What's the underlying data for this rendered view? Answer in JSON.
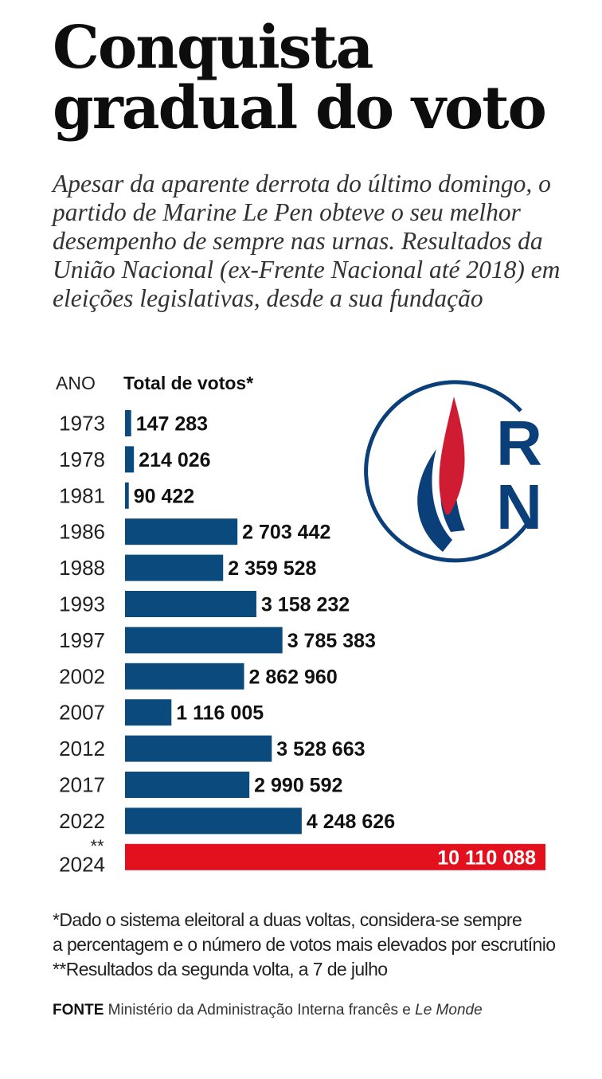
{
  "header": {
    "title_line1": "Conquista",
    "title_line2": "gradual do voto",
    "subtitle": "Apesar da aparente derrota do último domingo, o partido de Marine Le Pen obteve o seu melhor desempenho de sempre nas urnas. Resultados da União Nacional (ex-Frente Nacional até 2018) em eleições legislativas, desde a sua fundação"
  },
  "columns": {
    "year": "ANO",
    "total": "Total de votos*"
  },
  "logo": {
    "text_r": "R",
    "text_n": "N",
    "icon": "flame-logo-icon",
    "colors": {
      "blue": "#0b3f7a",
      "red": "#d01c33"
    }
  },
  "chart_data": {
    "type": "bar",
    "orientation": "horizontal",
    "categories": [
      "1973",
      "1978",
      "1981",
      "1986",
      "1988",
      "1993",
      "1997",
      "2002",
      "2007",
      "2012",
      "2017",
      "2022",
      "2024"
    ],
    "category_marks": [
      "",
      "",
      "",
      "",
      "",
      "",
      "",
      "",
      "",
      "",
      "",
      "",
      "**"
    ],
    "values": [
      147283,
      214026,
      90422,
      2703442,
      2359528,
      3158232,
      3785383,
      2862960,
      1116005,
      3528663,
      2990592,
      4248626,
      10110088
    ],
    "labels": [
      "147 283",
      "214 026",
      "90 422",
      "2 703 442",
      "2 359 528",
      "3 158 232",
      "3 785 383",
      "2 862 960",
      "1 116 005",
      "3 528 663",
      "2 990 592",
      "4 248 626",
      "10 110 088"
    ],
    "xlim": [
      0,
      10110088
    ],
    "colors": {
      "default": "#0b4a7d",
      "highlight": "#e3101d"
    },
    "highlight_index": 12
  },
  "notes": {
    "line1": "*Dado o sistema eleitoral a duas voltas, considera-se sempre",
    "line2": "a percentagem e o número de votos mais elevados por escrutínio",
    "line3": "**Resultados da segunda volta, a 7 de julho"
  },
  "source": {
    "label": "FONTE",
    "text": "Ministério da Administração Interna francês e",
    "italic": "Le Monde"
  }
}
